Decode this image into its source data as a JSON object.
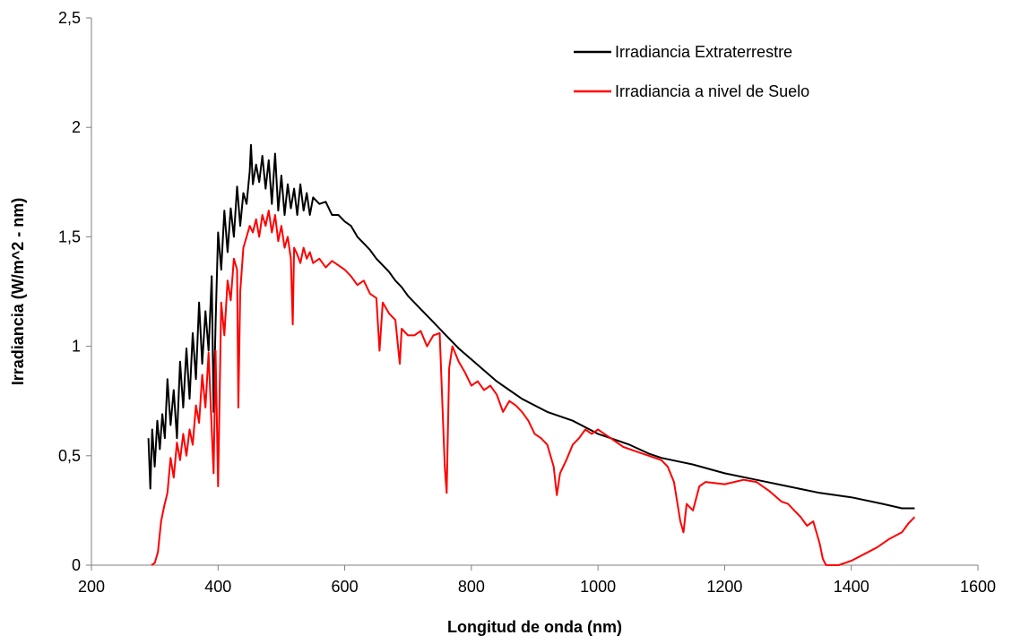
{
  "chart_data": {
    "type": "line",
    "title": "",
    "xlabel": "Longitud de onda (nm)",
    "ylabel": "Irradiancia (W/m^2 - nm)",
    "xlim": [
      200,
      1600
    ],
    "ylim": [
      0,
      2.5
    ],
    "x_ticks": [
      200,
      400,
      600,
      800,
      1000,
      1200,
      1400,
      1600
    ],
    "x_tick_labels": [
      "200",
      "400",
      "600",
      "800",
      "1000",
      "1200",
      "1400",
      "1600"
    ],
    "y_ticks": [
      0,
      0.5,
      1,
      1.5,
      2,
      2.5
    ],
    "y_tick_labels": [
      "0",
      "0,5",
      "1",
      "1,5",
      "2",
      "2,5"
    ],
    "grid": false,
    "legend_position": "top-right",
    "series": [
      {
        "name": "Irradiancia Extraterrestre",
        "color": "#000000",
        "x": [
          290,
          293,
          296,
          300,
          304,
          308,
          312,
          316,
          320,
          325,
          330,
          335,
          340,
          345,
          350,
          355,
          360,
          365,
          370,
          375,
          380,
          385,
          390,
          393,
          396,
          400,
          405,
          410,
          415,
          420,
          425,
          430,
          435,
          440,
          445,
          450,
          452,
          455,
          460,
          465,
          470,
          475,
          480,
          485,
          490,
          495,
          500,
          505,
          510,
          515,
          520,
          525,
          530,
          535,
          540,
          545,
          550,
          560,
          570,
          580,
          590,
          600,
          610,
          620,
          630,
          640,
          650,
          660,
          670,
          680,
          690,
          700,
          720,
          740,
          760,
          780,
          800,
          820,
          840,
          860,
          880,
          900,
          920,
          940,
          960,
          980,
          1000,
          1020,
          1050,
          1080,
          1100,
          1150,
          1200,
          1250,
          1300,
          1350,
          1400,
          1450,
          1480,
          1500
        ],
        "y": [
          0.58,
          0.35,
          0.62,
          0.45,
          0.66,
          0.53,
          0.69,
          0.58,
          0.85,
          0.64,
          0.8,
          0.58,
          0.93,
          0.72,
          0.99,
          0.76,
          1.06,
          0.85,
          1.2,
          0.92,
          1.16,
          0.98,
          1.32,
          0.7,
          1.1,
          1.52,
          1.35,
          1.62,
          1.43,
          1.63,
          1.5,
          1.73,
          1.55,
          1.7,
          1.65,
          1.8,
          1.92,
          1.74,
          1.83,
          1.75,
          1.87,
          1.72,
          1.85,
          1.65,
          1.88,
          1.62,
          1.78,
          1.6,
          1.74,
          1.63,
          1.72,
          1.6,
          1.74,
          1.62,
          1.7,
          1.6,
          1.68,
          1.65,
          1.66,
          1.6,
          1.6,
          1.57,
          1.55,
          1.5,
          1.47,
          1.44,
          1.4,
          1.37,
          1.34,
          1.3,
          1.27,
          1.23,
          1.17,
          1.11,
          1.05,
          0.99,
          0.94,
          0.89,
          0.84,
          0.8,
          0.76,
          0.73,
          0.7,
          0.68,
          0.66,
          0.63,
          0.6,
          0.58,
          0.55,
          0.51,
          0.49,
          0.46,
          0.42,
          0.39,
          0.36,
          0.33,
          0.31,
          0.28,
          0.26,
          0.26
        ]
      },
      {
        "name": "Irradiancia a nivel de Suelo",
        "color": "#ff0000",
        "x": [
          295,
          300,
          305,
          310,
          315,
          320,
          325,
          330,
          335,
          340,
          345,
          350,
          355,
          360,
          365,
          370,
          375,
          380,
          385,
          390,
          393,
          396,
          400,
          405,
          410,
          415,
          420,
          425,
          430,
          432,
          435,
          440,
          445,
          450,
          455,
          460,
          465,
          470,
          475,
          480,
          485,
          490,
          495,
          500,
          505,
          510,
          515,
          518,
          520,
          525,
          530,
          535,
          540,
          545,
          550,
          560,
          570,
          580,
          590,
          600,
          610,
          620,
          630,
          640,
          650,
          655,
          660,
          670,
          680,
          687,
          690,
          700,
          710,
          720,
          730,
          740,
          750,
          758,
          761,
          765,
          770,
          780,
          790,
          800,
          810,
          820,
          830,
          840,
          850,
          860,
          870,
          880,
          890,
          900,
          910,
          920,
          930,
          935,
          940,
          950,
          960,
          970,
          980,
          990,
          1000,
          1010,
          1020,
          1040,
          1060,
          1080,
          1100,
          1110,
          1120,
          1130,
          1135,
          1140,
          1150,
          1160,
          1170,
          1200,
          1230,
          1250,
          1270,
          1290,
          1300,
          1320,
          1330,
          1340,
          1350,
          1355,
          1360,
          1380,
          1400,
          1420,
          1440,
          1460,
          1480,
          1490,
          1500
        ],
        "y": [
          0.0,
          0.01,
          0.06,
          0.2,
          0.27,
          0.33,
          0.49,
          0.4,
          0.56,
          0.48,
          0.6,
          0.5,
          0.62,
          0.55,
          0.73,
          0.65,
          0.87,
          0.72,
          0.97,
          0.62,
          0.42,
          0.98,
          0.36,
          1.2,
          1.05,
          1.3,
          1.21,
          1.4,
          1.35,
          0.72,
          1.25,
          1.45,
          1.5,
          1.55,
          1.52,
          1.58,
          1.5,
          1.6,
          1.55,
          1.62,
          1.52,
          1.6,
          1.48,
          1.55,
          1.45,
          1.5,
          1.4,
          1.1,
          1.45,
          1.42,
          1.38,
          1.45,
          1.4,
          1.43,
          1.38,
          1.4,
          1.36,
          1.39,
          1.37,
          1.35,
          1.32,
          1.28,
          1.3,
          1.24,
          1.22,
          0.98,
          1.2,
          1.15,
          1.12,
          0.92,
          1.08,
          1.05,
          1.05,
          1.07,
          1.0,
          1.05,
          1.06,
          0.45,
          0.33,
          0.9,
          1.0,
          0.93,
          0.88,
          0.82,
          0.84,
          0.8,
          0.82,
          0.78,
          0.7,
          0.75,
          0.73,
          0.7,
          0.66,
          0.6,
          0.58,
          0.55,
          0.45,
          0.32,
          0.42,
          0.48,
          0.55,
          0.58,
          0.62,
          0.6,
          0.62,
          0.6,
          0.58,
          0.54,
          0.52,
          0.5,
          0.48,
          0.45,
          0.38,
          0.2,
          0.15,
          0.28,
          0.25,
          0.36,
          0.38,
          0.37,
          0.39,
          0.38,
          0.34,
          0.29,
          0.28,
          0.22,
          0.18,
          0.2,
          0.1,
          0.03,
          0.0,
          0.0,
          0.02,
          0.05,
          0.08,
          0.12,
          0.15,
          0.19,
          0.22
        ]
      }
    ]
  }
}
